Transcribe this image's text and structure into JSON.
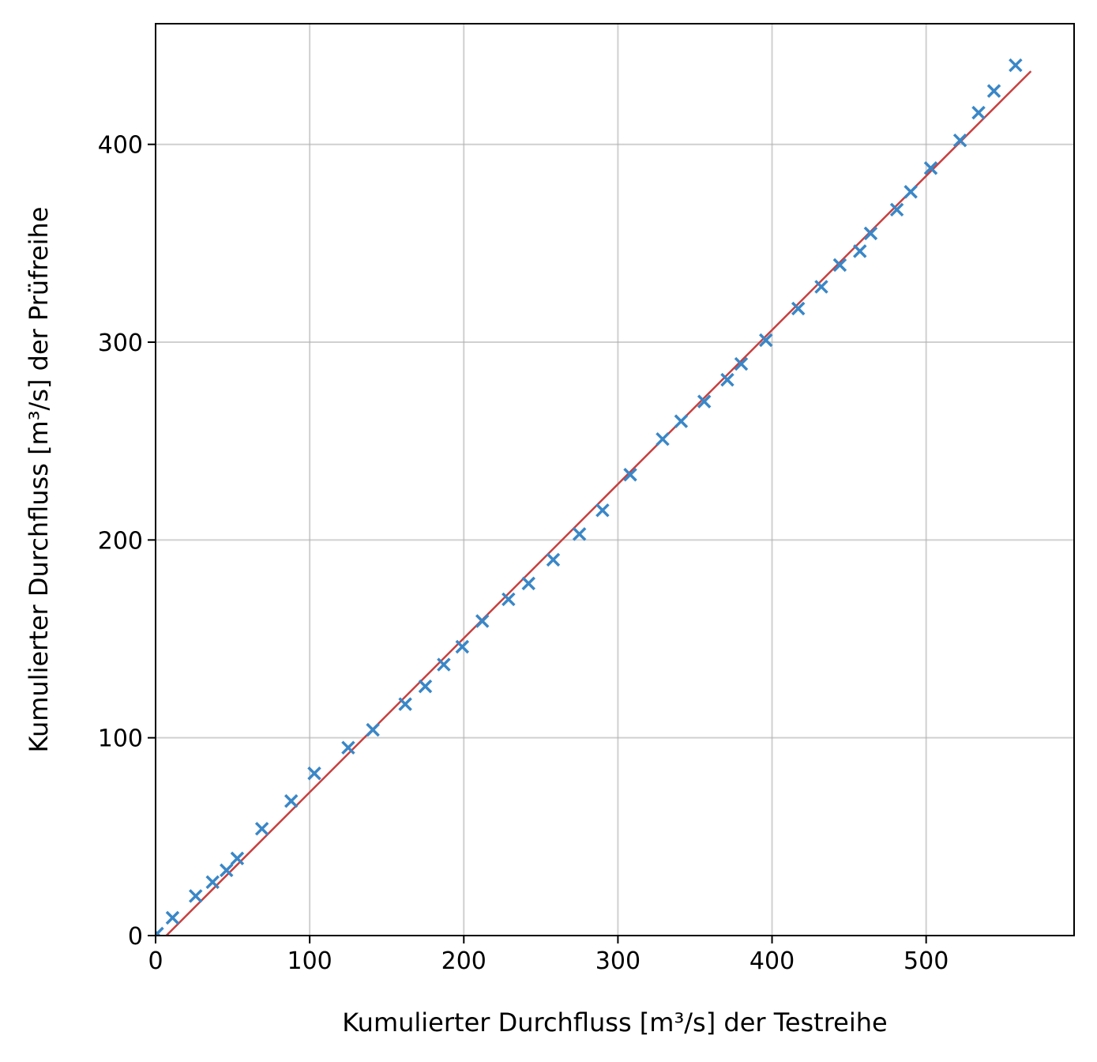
{
  "chart_data": {
    "type": "scatter",
    "title": "",
    "xlabel": "Kumulierter Durchfluss [m³/s] der Testreihe",
    "ylabel": "Kumulierter Durchfluss [m³/s] der Prüfreihe",
    "xlim": [
      0,
      596
    ],
    "ylim": [
      0,
      461
    ],
    "xticks": [
      0,
      100,
      200,
      300,
      400,
      500
    ],
    "yticks": [
      0,
      100,
      200,
      300,
      400
    ],
    "grid": true,
    "legend": "none",
    "series": [
      {
        "kind": "scatter",
        "marker": "x",
        "color": "#3a87c7",
        "points": [
          [
            1,
            1
          ],
          [
            11,
            9
          ],
          [
            26,
            20
          ],
          [
            37,
            27
          ],
          [
            46,
            33
          ],
          [
            53,
            39
          ],
          [
            69,
            54
          ],
          [
            88,
            68
          ],
          [
            103,
            82
          ],
          [
            125,
            95
          ],
          [
            141,
            104
          ],
          [
            162,
            117
          ],
          [
            175,
            126
          ],
          [
            187,
            137
          ],
          [
            199,
            146
          ],
          [
            212,
            159
          ],
          [
            229,
            170
          ],
          [
            242,
            178
          ],
          [
            258,
            190
          ],
          [
            275,
            203
          ],
          [
            290,
            215
          ],
          [
            308,
            233
          ],
          [
            329,
            251
          ],
          [
            341,
            260
          ],
          [
            356,
            270
          ],
          [
            371,
            281
          ],
          [
            380,
            289
          ],
          [
            396,
            301
          ],
          [
            417,
            317
          ],
          [
            432,
            328
          ],
          [
            444,
            339
          ],
          [
            457,
            346
          ],
          [
            464,
            355
          ],
          [
            481,
            367
          ],
          [
            490,
            376
          ],
          [
            503,
            388
          ],
          [
            522,
            402
          ],
          [
            534,
            416
          ],
          [
            544,
            427
          ],
          [
            558,
            440
          ]
        ]
      },
      {
        "kind": "line",
        "color": "#c84040",
        "points": [
          [
            7,
            0
          ],
          [
            568,
            437
          ]
        ]
      }
    ]
  }
}
